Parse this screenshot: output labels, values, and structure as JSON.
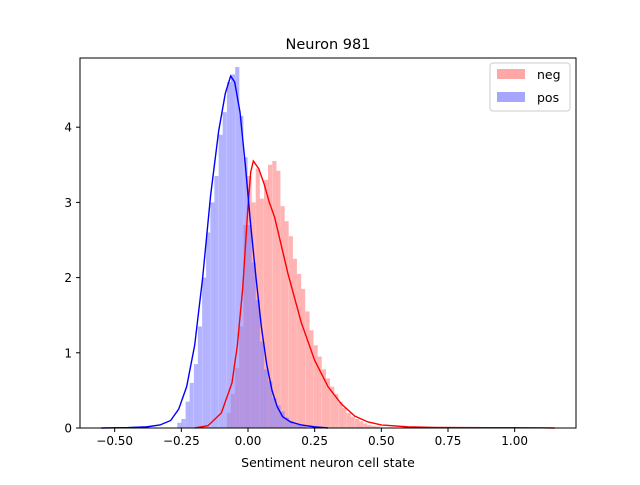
{
  "chart_data": {
    "type": "bar",
    "title": "Neuron 981",
    "xlabel": "Sentiment neuron cell state",
    "ylabel": "",
    "xlim": [
      -0.63,
      1.23
    ],
    "ylim": [
      0,
      4.92
    ],
    "xticks": [
      -0.5,
      -0.25,
      0.0,
      0.25,
      0.5,
      0.75,
      1.0
    ],
    "xtick_labels": [
      "−0.50",
      "−0.25",
      "0.00",
      "0.25",
      "0.50",
      "0.75",
      "1.00"
    ],
    "yticks": [
      0,
      1,
      2,
      3,
      4
    ],
    "ytick_labels": [
      "0",
      "1",
      "2",
      "3",
      "4"
    ],
    "grid": false,
    "legend_position": "top-right",
    "series": [
      {
        "name": "neg",
        "color": "#ff0000",
        "hist_color": "#ff8080",
        "bin_width": 0.0155,
        "bins": [
          [
            -0.08,
            0.2
          ],
          [
            -0.064,
            0.45
          ],
          [
            -0.049,
            0.8
          ],
          [
            -0.033,
            1.35
          ],
          [
            -0.018,
            2.7
          ],
          [
            -0.002,
            3.35
          ],
          [
            0.013,
            3.0
          ],
          [
            0.029,
            3.45
          ],
          [
            0.044,
            3.05
          ],
          [
            0.06,
            3.3
          ],
          [
            0.075,
            3.5
          ],
          [
            0.091,
            3.55
          ],
          [
            0.106,
            3.42
          ],
          [
            0.122,
            2.95
          ],
          [
            0.137,
            2.75
          ],
          [
            0.153,
            2.55
          ],
          [
            0.168,
            2.25
          ],
          [
            0.184,
            2.05
          ],
          [
            0.199,
            1.85
          ],
          [
            0.215,
            1.55
          ],
          [
            0.23,
            1.3
          ],
          [
            0.246,
            1.1
          ],
          [
            0.261,
            0.95
          ],
          [
            0.277,
            0.78
          ],
          [
            0.292,
            0.66
          ],
          [
            0.308,
            0.55
          ],
          [
            0.323,
            0.45
          ],
          [
            0.339,
            0.35
          ],
          [
            0.354,
            0.27
          ],
          [
            0.37,
            0.2
          ],
          [
            0.385,
            0.15
          ],
          [
            0.401,
            0.12
          ],
          [
            0.416,
            0.09
          ],
          [
            0.432,
            0.06
          ],
          [
            0.447,
            0.04
          ],
          [
            0.463,
            0.03
          ],
          [
            0.478,
            0.02
          ]
        ],
        "kde": [
          [
            -0.2,
            0.0
          ],
          [
            -0.15,
            0.03
          ],
          [
            -0.1,
            0.2
          ],
          [
            -0.06,
            0.6
          ],
          [
            -0.04,
            1.1
          ],
          [
            -0.02,
            1.85
          ],
          [
            0.0,
            2.95
          ],
          [
            0.01,
            3.4
          ],
          [
            0.02,
            3.55
          ],
          [
            0.04,
            3.45
          ],
          [
            0.06,
            3.25
          ],
          [
            0.08,
            3.0
          ],
          [
            0.1,
            2.8
          ],
          [
            0.12,
            2.5
          ],
          [
            0.15,
            2.05
          ],
          [
            0.2,
            1.4
          ],
          [
            0.25,
            0.9
          ],
          [
            0.3,
            0.55
          ],
          [
            0.35,
            0.32
          ],
          [
            0.4,
            0.16
          ],
          [
            0.45,
            0.08
          ],
          [
            0.5,
            0.04
          ],
          [
            0.6,
            0.015
          ],
          [
            0.7,
            0.008
          ],
          [
            0.8,
            0.005
          ],
          [
            0.9,
            0.004
          ],
          [
            1.0,
            0.004
          ],
          [
            1.1,
            0.002
          ],
          [
            1.15,
            0.0
          ]
        ]
      },
      {
        "name": "pos",
        "color": "#0000ff",
        "hist_color": "#8080ff",
        "bin_width": 0.0155,
        "bins": [
          [
            -0.265,
            0.07
          ],
          [
            -0.25,
            0.12
          ],
          [
            -0.234,
            0.35
          ],
          [
            -0.219,
            0.6
          ],
          [
            -0.203,
            0.85
          ],
          [
            -0.188,
            1.35
          ],
          [
            -0.172,
            2.0
          ],
          [
            -0.157,
            2.6
          ],
          [
            -0.141,
            3.0
          ],
          [
            -0.126,
            3.35
          ],
          [
            -0.11,
            3.9
          ],
          [
            -0.095,
            4.2
          ],
          [
            -0.079,
            4.6
          ],
          [
            -0.064,
            4.7
          ],
          [
            -0.048,
            4.8
          ],
          [
            -0.033,
            4.15
          ],
          [
            -0.017,
            3.6
          ],
          [
            -0.002,
            2.7
          ],
          [
            0.014,
            2.2
          ],
          [
            0.029,
            1.7
          ],
          [
            0.045,
            1.15
          ],
          [
            0.06,
            0.78
          ],
          [
            0.076,
            0.62
          ],
          [
            0.091,
            0.4
          ],
          [
            0.107,
            0.3
          ],
          [
            0.122,
            0.22
          ],
          [
            0.138,
            0.14
          ],
          [
            0.153,
            0.09
          ],
          [
            0.169,
            0.05
          ],
          [
            0.184,
            0.04
          ],
          [
            0.2,
            0.03
          ]
        ],
        "kde": [
          [
            -0.55,
            0.0
          ],
          [
            -0.45,
            0.005
          ],
          [
            -0.38,
            0.015
          ],
          [
            -0.33,
            0.04
          ],
          [
            -0.29,
            0.1
          ],
          [
            -0.26,
            0.25
          ],
          [
            -0.23,
            0.55
          ],
          [
            -0.2,
            1.1
          ],
          [
            -0.17,
            2.0
          ],
          [
            -0.14,
            3.1
          ],
          [
            -0.11,
            3.95
          ],
          [
            -0.085,
            4.45
          ],
          [
            -0.065,
            4.68
          ],
          [
            -0.05,
            4.6
          ],
          [
            -0.03,
            4.2
          ],
          [
            -0.01,
            3.5
          ],
          [
            0.01,
            2.7
          ],
          [
            0.03,
            2.0
          ],
          [
            0.05,
            1.35
          ],
          [
            0.07,
            0.85
          ],
          [
            0.09,
            0.5
          ],
          [
            0.11,
            0.28
          ],
          [
            0.13,
            0.15
          ],
          [
            0.16,
            0.08
          ],
          [
            0.2,
            0.04
          ],
          [
            0.25,
            0.015
          ],
          [
            0.3,
            0.0
          ]
        ]
      }
    ]
  }
}
